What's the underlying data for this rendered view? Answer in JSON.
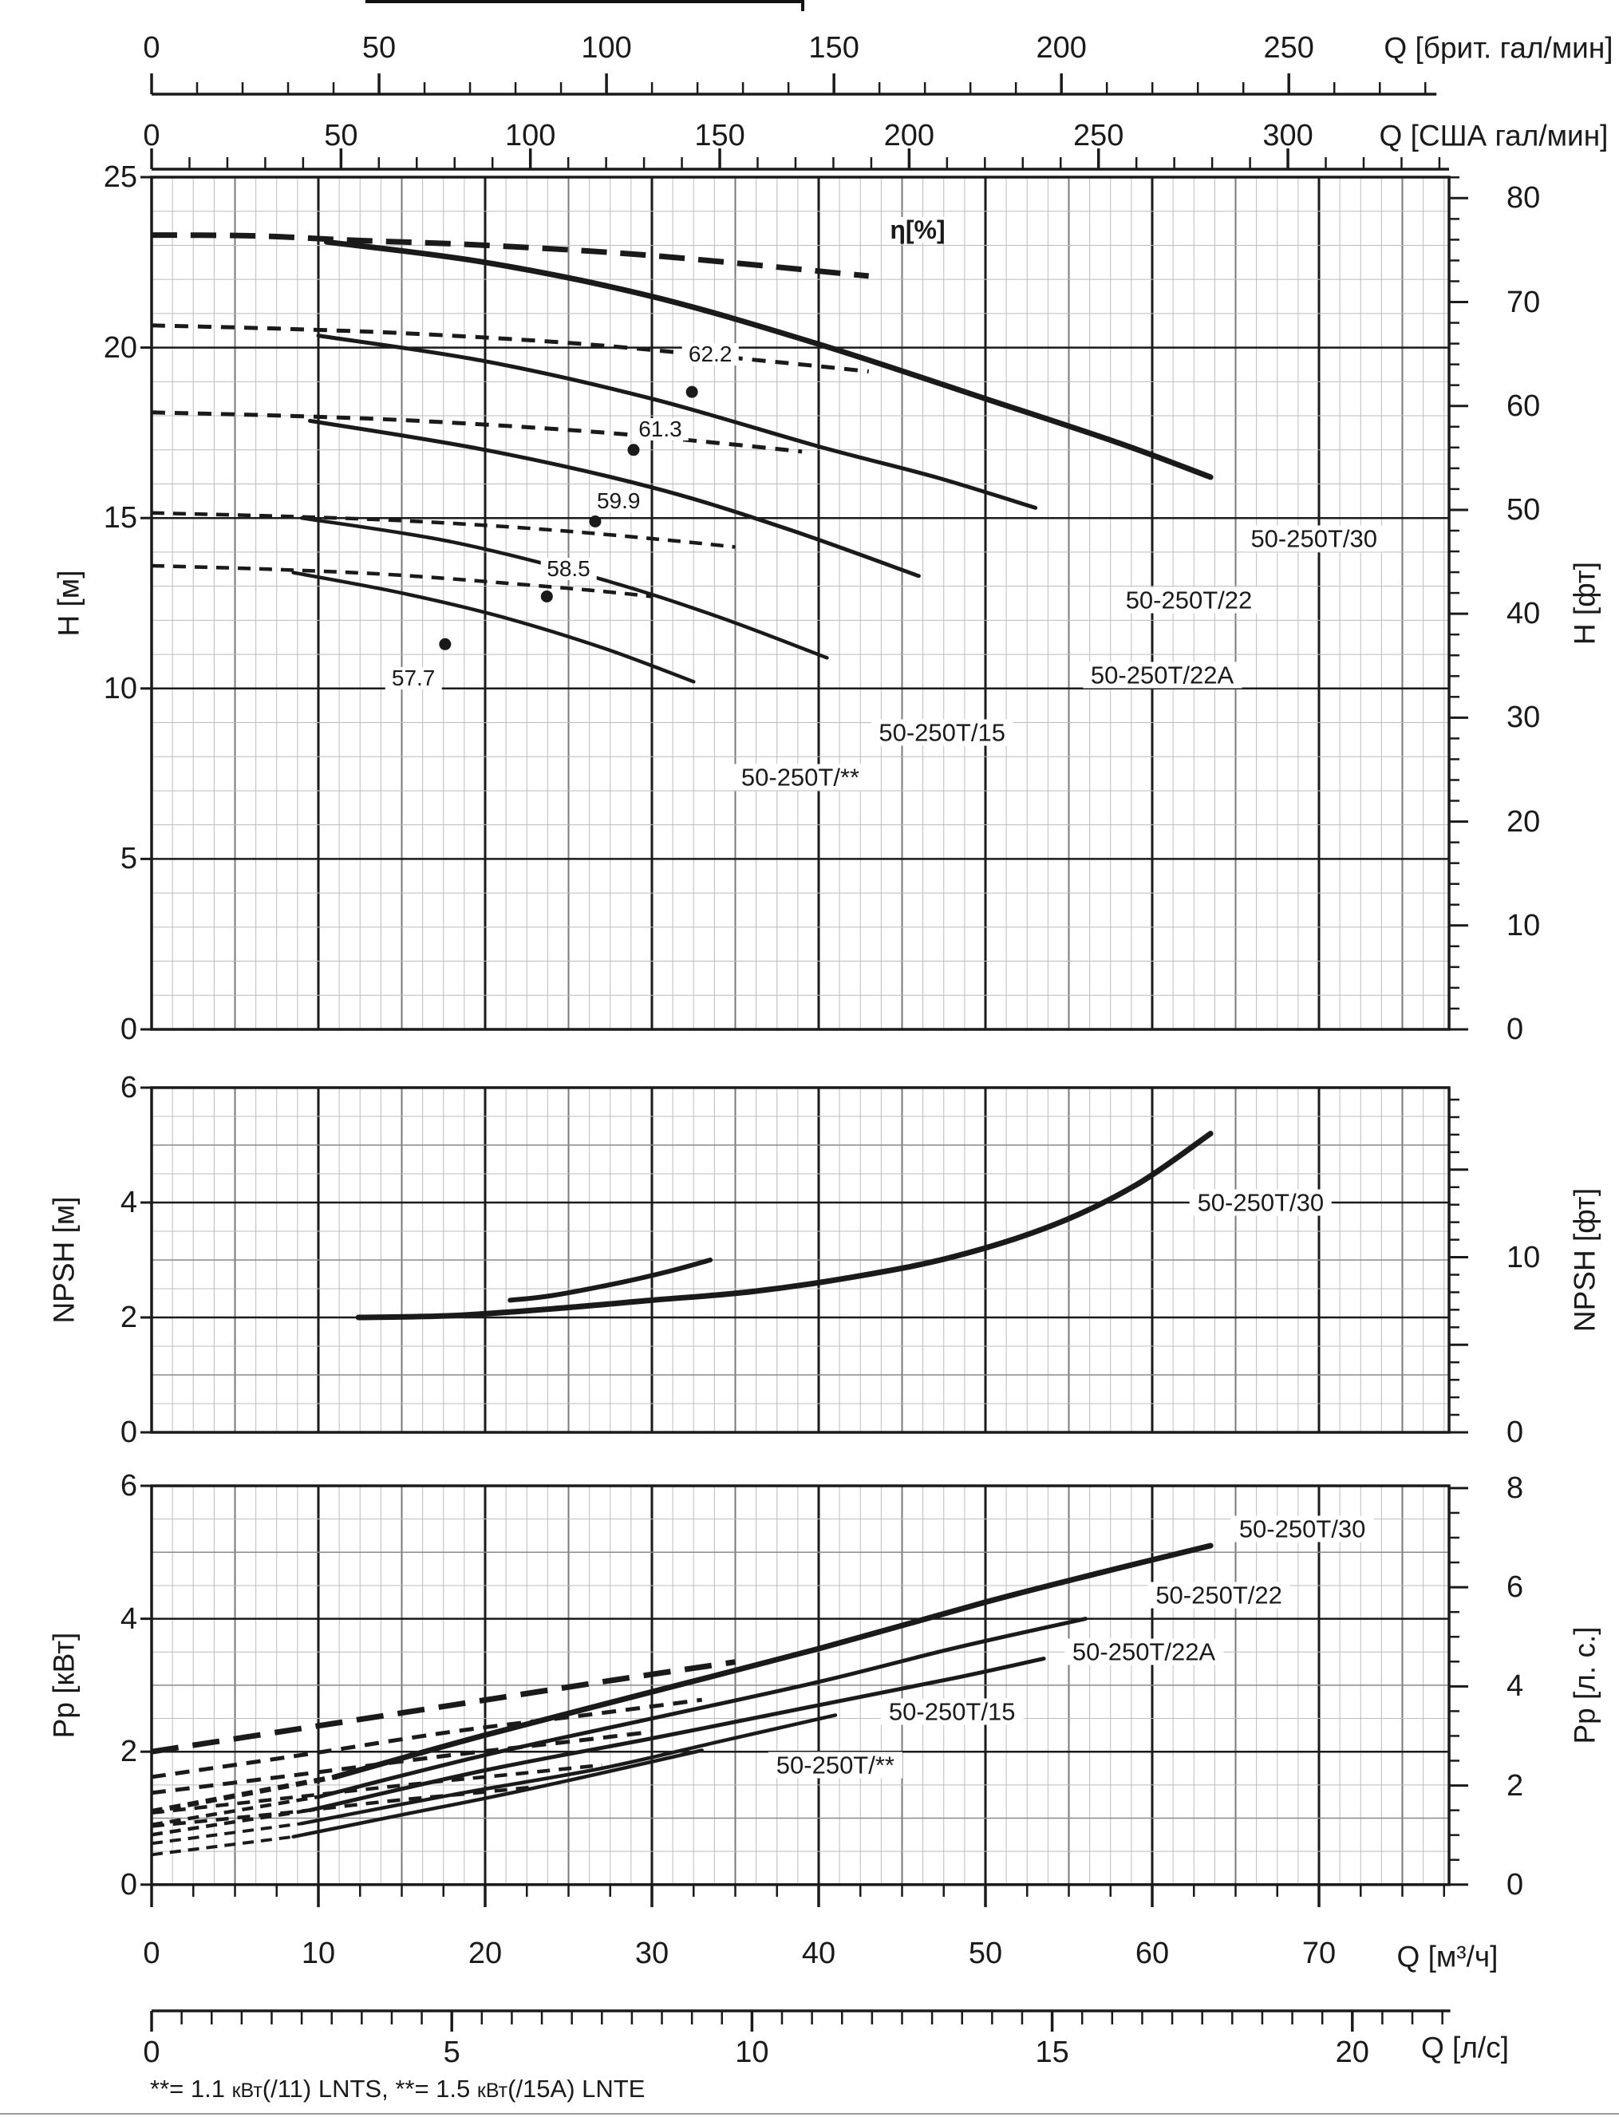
{
  "page": {
    "background": "#ffffff",
    "ink": "#1a1a1a",
    "grid_minor": "#bcbcbc",
    "grid_mid": "#7a7a7a",
    "grid_major": "#1a1a1a"
  },
  "top_rulers": [
    {
      "name": "imp-gpm",
      "title": "Q [брит. гал/мин]",
      "per_m3h": 3.6661,
      "tick_step": 10,
      "max_tick": 280,
      "labels": [
        0,
        50,
        100,
        150,
        200,
        250
      ]
    },
    {
      "name": "us-gpm",
      "title": "Q [США гал/мин]",
      "per_m3h": 4.4029,
      "tick_step": 10,
      "max_tick": 340,
      "labels": [
        0,
        50,
        100,
        150,
        200,
        250,
        300
      ]
    }
  ],
  "bottom_rulers": [
    {
      "name": "m3h",
      "title": "Q [м³/ч]",
      "per_m3h": 1,
      "tick_step": 2.5,
      "major_step": 10,
      "max_tick": 77.5,
      "labels": [
        0,
        10,
        20,
        30,
        40,
        50,
        60,
        70
      ]
    },
    {
      "name": "lps",
      "title": "Q [л/с]",
      "per_m3h": 0.27778,
      "tick_step": 0.5,
      "major_step": 5,
      "max_tick": 21.5,
      "labels": [
        0,
        5,
        10,
        15,
        20
      ]
    }
  ],
  "footnote": {
    "segments": [
      {
        "text": "**= 1.1 ",
        "small": false
      },
      {
        "text": "кВт",
        "small": true
      },
      {
        "text": "(/11) LNTS,  ",
        "small": false
      },
      {
        "text": "**= 1.5 ",
        "small": false
      },
      {
        "text": "кВт",
        "small": true
      },
      {
        "text": "(/15A) LNTE",
        "small": false
      }
    ]
  },
  "chart_data": [
    {
      "id": "head",
      "type": "line",
      "title": "Pump head curves H-Q",
      "xlabel": "Q [м³/ч]",
      "ylabel": "H [м]",
      "ylabel_right": "H [фт]",
      "ylim": [
        0,
        25
      ],
      "xlim": [
        0,
        77.8
      ],
      "grid": "on",
      "yticks_left": [
        0,
        5,
        10,
        15,
        20,
        25
      ],
      "right_axis": {
        "per_unit": 3.2808,
        "tick_step": 2,
        "label_step": 10,
        "max": 82,
        "labels": [
          0,
          10,
          20,
          30,
          40,
          50,
          60,
          70,
          80
        ]
      },
      "eta": {
        "title": "η[%]",
        "title_q": 45.9,
        "title_h": 23.2,
        "points": [
          {
            "value": "62.2",
            "q": 32.4,
            "h": 18.7,
            "label_q": 33.5,
            "label_h": 19.8
          },
          {
            "value": "61.3",
            "q": 28.9,
            "h": 17.0,
            "label_q": 30.5,
            "label_h": 17.6
          },
          {
            "value": "59.9",
            "q": 26.6,
            "h": 14.9,
            "label_q": 28.0,
            "label_h": 15.5
          },
          {
            "value": "58.5",
            "q": 23.7,
            "h": 12.7,
            "label_q": 25.0,
            "label_h": 13.5
          },
          {
            "value": "57.7",
            "q": 17.6,
            "h": 11.3,
            "label_q": 15.7,
            "label_h": 10.3
          }
        ]
      },
      "series": [
        {
          "name": "50-250T/30",
          "width": 7,
          "dash": "32 17",
          "dashed_points": [
            [
              0,
              23.3
            ],
            [
              6,
              23.28
            ],
            [
              12,
              23.15
            ],
            [
              20,
              23.0
            ],
            [
              30,
              22.7
            ],
            [
              43,
              22.1
            ]
          ],
          "solid_points": [
            [
              10.5,
              23.1
            ],
            [
              20,
              22.5
            ],
            [
              30,
              21.5
            ],
            [
              40,
              20.1
            ],
            [
              50,
              18.5
            ],
            [
              58,
              17.2
            ],
            [
              63.5,
              16.2
            ]
          ],
          "label_q": 69.7,
          "label_v": 14.4
        },
        {
          "name": "50-250T/22",
          "width": 5,
          "dash": "17 12",
          "dashed_points": [
            [
              0,
              20.65
            ],
            [
              8,
              20.55
            ],
            [
              16,
              20.4
            ],
            [
              26,
              20.1
            ],
            [
              37,
              19.6
            ],
            [
              43,
              19.3
            ]
          ],
          "solid_points": [
            [
              10,
              20.35
            ],
            [
              20,
              19.6
            ],
            [
              30,
              18.5
            ],
            [
              40,
              17.1
            ],
            [
              47,
              16.2
            ],
            [
              53,
              15.3
            ]
          ],
          "label_q": 62.2,
          "label_v": 12.6
        },
        {
          "name": "50-250T/22A",
          "width": 5,
          "dash": "17 12",
          "dashed_points": [
            [
              0,
              18.1
            ],
            [
              8,
              18.0
            ],
            [
              16,
              17.85
            ],
            [
              26,
              17.55
            ],
            [
              34,
              17.2
            ],
            [
              39,
              16.95
            ]
          ],
          "solid_points": [
            [
              9.5,
              17.85
            ],
            [
              20,
              17.0
            ],
            [
              30,
              15.9
            ],
            [
              38,
              14.7
            ],
            [
              46,
              13.3
            ]
          ],
          "label_q": 60.6,
          "label_v": 10.4
        },
        {
          "name": "50-250T/15",
          "width": 4.5,
          "dash": "16 11",
          "dashed_points": [
            [
              0,
              15.15
            ],
            [
              8,
              15.05
            ],
            [
              16,
              14.9
            ],
            [
              24,
              14.65
            ],
            [
              31,
              14.35
            ],
            [
              35,
              14.15
            ]
          ],
          "solid_points": [
            [
              9,
              15.0
            ],
            [
              18,
              14.3
            ],
            [
              27,
              13.2
            ],
            [
              34,
              12.1
            ],
            [
              40.5,
              10.9
            ]
          ],
          "label_q": 47.4,
          "label_v": 8.7
        },
        {
          "name": "50-250T/**",
          "width": 4.5,
          "dash": "16 11",
          "dashed_points": [
            [
              0,
              13.6
            ],
            [
              7,
              13.5
            ],
            [
              14,
              13.35
            ],
            [
              21,
              13.1
            ],
            [
              27,
              12.85
            ],
            [
              30,
              12.7
            ]
          ],
          "solid_points": [
            [
              8.5,
              13.4
            ],
            [
              15,
              12.8
            ],
            [
              21,
              12.1
            ],
            [
              27,
              11.2
            ],
            [
              32.5,
              10.2
            ]
          ],
          "label_q": 38.9,
          "label_v": 7.4
        }
      ]
    },
    {
      "id": "npsh",
      "type": "line",
      "title": "NPSH curve",
      "xlabel": "Q [м³/ч]",
      "ylabel": "NPSH [м]",
      "ylabel_right": "NPSH [фт]",
      "ylim": [
        0,
        6
      ],
      "xlim": [
        0,
        77.8
      ],
      "grid": "on",
      "yticks_left": [
        0,
        2,
        4,
        6
      ],
      "right_axis": {
        "per_unit": 3.2808,
        "tick_step": 1,
        "label_step": 5,
        "max": 19,
        "labels": [
          0,
          10
        ]
      },
      "series": [
        {
          "name": "50-250T/30",
          "width": 7,
          "dash": "",
          "solid_points": [
            [
              12.4,
              2.0
            ],
            [
              18,
              2.03
            ],
            [
              24,
              2.15
            ],
            [
              30,
              2.3
            ],
            [
              36,
              2.45
            ],
            [
              42,
              2.7
            ],
            [
              48,
              3.05
            ],
            [
              54,
              3.6
            ],
            [
              59,
              4.3
            ],
            [
              63.5,
              5.2
            ]
          ],
          "label_q": 66.5,
          "label_v": 4.0
        },
        {
          "name": "",
          "width": 6,
          "dash": "",
          "solid_points": [
            [
              21.5,
              2.3
            ],
            [
              24,
              2.38
            ],
            [
              28,
              2.6
            ],
            [
              31,
              2.8
            ],
            [
              33.5,
              3.0
            ]
          ]
        }
      ]
    },
    {
      "id": "power",
      "type": "line",
      "title": "Pump power input curves",
      "xlabel": "Q [м³/ч]",
      "ylabel": "Pp [кВт]",
      "ylabel_right": "Pp [л. с.]",
      "ylim": [
        0,
        6
      ],
      "xlim": [
        0,
        77.8
      ],
      "grid": "on",
      "yticks_left": [
        0,
        2,
        4,
        6
      ],
      "right_axis": {
        "per_unit": 1.341,
        "tick_step": 0.5,
        "label_step": 2,
        "max": 8,
        "labels": [
          0,
          2,
          4,
          6,
          8
        ]
      },
      "series": [
        {
          "name": "50-250T/30",
          "width": 7,
          "dash": "34 18",
          "dashed_points": [
            [
              0,
              2.0
            ],
            [
              9,
              2.35
            ],
            [
              18,
              2.7
            ],
            [
              27,
              3.05
            ],
            [
              35,
              3.35
            ]
          ],
          "prefix_points": [
            [
              0,
              1.1
            ],
            [
              11,
              1.62
            ]
          ],
          "solid_points": [
            [
              11,
              1.62
            ],
            [
              20,
              2.25
            ],
            [
              30,
              2.9
            ],
            [
              40,
              3.55
            ],
            [
              50,
              4.25
            ],
            [
              57,
              4.7
            ],
            [
              63.5,
              5.1
            ]
          ],
          "label_q": 69.0,
          "label_v": 5.35
        },
        {
          "name": "50-250T/22",
          "width": 5,
          "dash": "18 12",
          "dashed_points": [
            [
              0,
              1.62
            ],
            [
              9,
              1.95
            ],
            [
              18,
              2.3
            ],
            [
              26,
              2.55
            ],
            [
              33,
              2.78
            ]
          ],
          "prefix_points": [
            [
              0,
              0.9
            ],
            [
              10,
              1.32
            ]
          ],
          "solid_points": [
            [
              10,
              1.32
            ],
            [
              20,
              1.95
            ],
            [
              30,
              2.5
            ],
            [
              40,
              3.05
            ],
            [
              48,
              3.55
            ],
            [
              56,
              4.0
            ]
          ],
          "label_q": 64.0,
          "label_v": 4.35
        },
        {
          "name": "50-250T/22A",
          "width": 5,
          "dash": "18 12",
          "dashed_points": [
            [
              0,
              1.38
            ],
            [
              9,
              1.66
            ],
            [
              18,
              1.95
            ],
            [
              25,
              2.15
            ],
            [
              30,
              2.3
            ]
          ],
          "prefix_points": [
            [
              0,
              0.75
            ],
            [
              9.5,
              1.12
            ]
          ],
          "solid_points": [
            [
              9.5,
              1.12
            ],
            [
              20,
              1.72
            ],
            [
              30,
              2.2
            ],
            [
              40,
              2.7
            ],
            [
              48,
              3.1
            ],
            [
              53.5,
              3.4
            ]
          ],
          "label_q": 59.5,
          "label_v": 3.5
        },
        {
          "name": "50-250T/15",
          "width": 4.5,
          "dash": "16 11",
          "dashed_points": [
            [
              0,
              1.08
            ],
            [
              8,
              1.3
            ],
            [
              16,
              1.52
            ],
            [
              22,
              1.67
            ],
            [
              27,
              1.8
            ]
          ],
          "prefix_points": [
            [
              0,
              0.62
            ],
            [
              9,
              0.92
            ]
          ],
          "solid_points": [
            [
              9,
              0.92
            ],
            [
              18,
              1.35
            ],
            [
              27,
              1.75
            ],
            [
              34,
              2.15
            ],
            [
              41,
              2.55
            ]
          ],
          "label_q": 48.0,
          "label_v": 2.6
        },
        {
          "name": "50-250T/**",
          "width": 4.5,
          "dash": "16 11",
          "dashed_points": [
            [
              0,
              0.88
            ],
            [
              8,
              1.08
            ],
            [
              14,
              1.25
            ],
            [
              19,
              1.37
            ],
            [
              23,
              1.47
            ]
          ],
          "prefix_points": [
            [
              0,
              0.45
            ],
            [
              8.5,
              0.72
            ]
          ],
          "solid_points": [
            [
              8.5,
              0.72
            ],
            [
              15,
              1.05
            ],
            [
              21,
              1.35
            ],
            [
              27,
              1.68
            ],
            [
              33,
              2.02
            ]
          ],
          "label_q": 41.0,
          "label_v": 1.8
        }
      ]
    }
  ]
}
